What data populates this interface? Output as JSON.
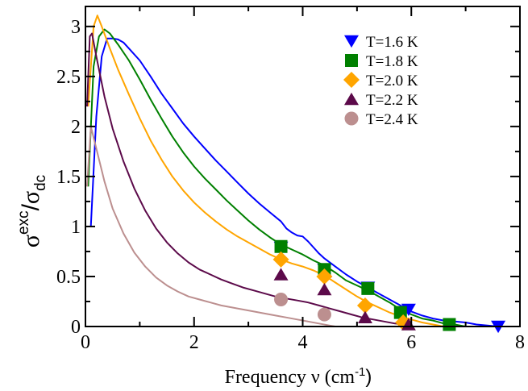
{
  "chart_data": {
    "type": "line",
    "title": "",
    "xlabel": {
      "main": "Frequency ν (cm",
      "sup": "-1",
      "close": ")"
    },
    "ylabel": {
      "sigma1": "σ",
      "sup": "exc",
      "slash": "/",
      "sigma2": "σ",
      "sub": "dc"
    },
    "xlim": [
      0,
      8
    ],
    "ylim": [
      0,
      3.2
    ],
    "xticks": [
      0,
      2,
      4,
      6,
      8
    ],
    "yticks": [
      0,
      0.5,
      1,
      1.5,
      2,
      2.5,
      3
    ],
    "xtick_labels": [
      "0",
      "2",
      "4",
      "6",
      "8"
    ],
    "ytick_labels": [
      "0",
      "0.5",
      "1",
      "1.5",
      "2",
      "2.5",
      "3"
    ],
    "grid": false,
    "legend_position": "top-right",
    "series": [
      {
        "name": "T=1.6 K",
        "color": "#0000ff",
        "marker": "triangle-down",
        "curve": [
          [
            0.1,
            1.0
          ],
          [
            0.2,
            2.1
          ],
          [
            0.3,
            2.7
          ],
          [
            0.4,
            2.88
          ],
          [
            0.5,
            2.88
          ],
          [
            0.6,
            2.87
          ],
          [
            0.7,
            2.84
          ],
          [
            0.8,
            2.78
          ],
          [
            1.0,
            2.66
          ],
          [
            1.2,
            2.5
          ],
          [
            1.4,
            2.33
          ],
          [
            1.6,
            2.18
          ],
          [
            1.8,
            2.03
          ],
          [
            2.0,
            1.9
          ],
          [
            2.2,
            1.78
          ],
          [
            2.4,
            1.66
          ],
          [
            2.6,
            1.55
          ],
          [
            2.8,
            1.44
          ],
          [
            3.0,
            1.33
          ],
          [
            3.2,
            1.23
          ],
          [
            3.4,
            1.14
          ],
          [
            3.6,
            1.05
          ],
          [
            3.7,
            0.98
          ],
          [
            3.8,
            0.94
          ],
          [
            3.9,
            0.91
          ],
          [
            4.0,
            0.9
          ],
          [
            4.1,
            0.85
          ],
          [
            4.2,
            0.79
          ],
          [
            4.3,
            0.73
          ],
          [
            4.4,
            0.68
          ],
          [
            4.6,
            0.6
          ],
          [
            4.8,
            0.52
          ],
          [
            5.0,
            0.45
          ],
          [
            5.2,
            0.39
          ],
          [
            5.4,
            0.33
          ],
          [
            5.6,
            0.27
          ],
          [
            5.8,
            0.21
          ],
          [
            6.0,
            0.15
          ],
          [
            6.2,
            0.11
          ],
          [
            6.4,
            0.08
          ],
          [
            6.6,
            0.06
          ],
          [
            6.8,
            0.05
          ],
          [
            7.0,
            0.04
          ],
          [
            7.2,
            0.02
          ],
          [
            7.4,
            0.01
          ],
          [
            7.6,
            0.0
          ]
        ],
        "points": [
          [
            3.6,
            0.79
          ],
          [
            4.4,
            0.57
          ],
          [
            5.2,
            0.39
          ],
          [
            5.95,
            0.17
          ],
          [
            7.6,
            0.0
          ]
        ]
      },
      {
        "name": "T=1.8 K",
        "color": "#008000",
        "marker": "square",
        "curve": [
          [
            0.05,
            1.4
          ],
          [
            0.15,
            2.6
          ],
          [
            0.25,
            2.9
          ],
          [
            0.35,
            2.97
          ],
          [
            0.45,
            2.93
          ],
          [
            0.6,
            2.82
          ],
          [
            0.8,
            2.66
          ],
          [
            1.0,
            2.47
          ],
          [
            1.2,
            2.27
          ],
          [
            1.4,
            2.08
          ],
          [
            1.6,
            1.9
          ],
          [
            1.8,
            1.74
          ],
          [
            2.0,
            1.6
          ],
          [
            2.2,
            1.48
          ],
          [
            2.4,
            1.37
          ],
          [
            2.6,
            1.26
          ],
          [
            2.8,
            1.16
          ],
          [
            3.0,
            1.06
          ],
          [
            3.2,
            0.97
          ],
          [
            3.4,
            0.89
          ],
          [
            3.6,
            0.82
          ],
          [
            3.8,
            0.77
          ],
          [
            4.0,
            0.72
          ],
          [
            4.2,
            0.66
          ],
          [
            4.4,
            0.61
          ],
          [
            4.6,
            0.54
          ],
          [
            4.8,
            0.46
          ],
          [
            5.0,
            0.41
          ],
          [
            5.2,
            0.36
          ],
          [
            5.4,
            0.3
          ],
          [
            5.6,
            0.24
          ],
          [
            5.8,
            0.17
          ],
          [
            6.0,
            0.12
          ],
          [
            6.2,
            0.08
          ],
          [
            6.4,
            0.06
          ],
          [
            6.6,
            0.03
          ],
          [
            6.8,
            0.02
          ],
          [
            7.0,
            0.0
          ]
        ],
        "points": [
          [
            3.6,
            0.8
          ],
          [
            4.4,
            0.57
          ],
          [
            5.2,
            0.38
          ],
          [
            5.8,
            0.14
          ],
          [
            6.7,
            0.02
          ]
        ]
      },
      {
        "name": "T=2.0 K",
        "color": "#ffa500",
        "marker": "diamond",
        "curve": [
          [
            0.05,
            2.2
          ],
          [
            0.15,
            3.0
          ],
          [
            0.22,
            3.11
          ],
          [
            0.3,
            3.0
          ],
          [
            0.45,
            2.78
          ],
          [
            0.6,
            2.57
          ],
          [
            0.8,
            2.32
          ],
          [
            1.0,
            2.08
          ],
          [
            1.2,
            1.86
          ],
          [
            1.4,
            1.67
          ],
          [
            1.6,
            1.5
          ],
          [
            1.8,
            1.36
          ],
          [
            2.0,
            1.24
          ],
          [
            2.2,
            1.14
          ],
          [
            2.4,
            1.05
          ],
          [
            2.6,
            0.97
          ],
          [
            2.8,
            0.9
          ],
          [
            3.0,
            0.84
          ],
          [
            3.2,
            0.78
          ],
          [
            3.4,
            0.72
          ],
          [
            3.6,
            0.67
          ],
          [
            3.8,
            0.63
          ],
          [
            4.0,
            0.6
          ],
          [
            4.2,
            0.56
          ],
          [
            4.4,
            0.51
          ],
          [
            4.6,
            0.44
          ],
          [
            4.8,
            0.37
          ],
          [
            5.0,
            0.3
          ],
          [
            5.2,
            0.24
          ],
          [
            5.4,
            0.19
          ],
          [
            5.6,
            0.14
          ],
          [
            5.8,
            0.1
          ],
          [
            6.0,
            0.07
          ],
          [
            6.2,
            0.04
          ],
          [
            6.4,
            0.02
          ],
          [
            6.6,
            0.0
          ]
        ],
        "points": [
          [
            3.6,
            0.67
          ],
          [
            4.4,
            0.5
          ],
          [
            5.15,
            0.21
          ],
          [
            5.85,
            0.04
          ]
        ]
      },
      {
        "name": "T=2.2 K",
        "color": "#5c0a4a",
        "marker": "triangle-up",
        "curve": [
          [
            0.03,
            2.2
          ],
          [
            0.08,
            2.9
          ],
          [
            0.12,
            2.93
          ],
          [
            0.2,
            2.7
          ],
          [
            0.35,
            2.3
          ],
          [
            0.5,
            1.98
          ],
          [
            0.7,
            1.65
          ],
          [
            0.9,
            1.38
          ],
          [
            1.1,
            1.16
          ],
          [
            1.3,
            0.98
          ],
          [
            1.5,
            0.84
          ],
          [
            1.7,
            0.73
          ],
          [
            1.9,
            0.64
          ],
          [
            2.1,
            0.57
          ],
          [
            2.3,
            0.52
          ],
          [
            2.5,
            0.47
          ],
          [
            2.7,
            0.43
          ],
          [
            2.9,
            0.39
          ],
          [
            3.1,
            0.36
          ],
          [
            3.3,
            0.33
          ],
          [
            3.5,
            0.3
          ],
          [
            3.7,
            0.28
          ],
          [
            3.9,
            0.26
          ],
          [
            4.1,
            0.24
          ],
          [
            4.3,
            0.21
          ],
          [
            4.5,
            0.18
          ],
          [
            4.7,
            0.15
          ],
          [
            4.9,
            0.12
          ],
          [
            5.1,
            0.09
          ],
          [
            5.3,
            0.07
          ],
          [
            5.5,
            0.05
          ],
          [
            5.7,
            0.03
          ],
          [
            5.9,
            0.02
          ],
          [
            6.0,
            0.0
          ]
        ],
        "points": [
          [
            3.6,
            0.52
          ],
          [
            4.4,
            0.37
          ],
          [
            5.15,
            0.09
          ],
          [
            5.95,
            0.02
          ]
        ]
      },
      {
        "name": "T=2.4 K",
        "color": "#bc8f8f",
        "marker": "circle",
        "curve": [
          [
            0.03,
            1.4
          ],
          [
            0.1,
            2.0
          ],
          [
            0.2,
            1.78
          ],
          [
            0.35,
            1.45
          ],
          [
            0.5,
            1.18
          ],
          [
            0.7,
            0.93
          ],
          [
            0.9,
            0.74
          ],
          [
            1.1,
            0.6
          ],
          [
            1.3,
            0.49
          ],
          [
            1.5,
            0.41
          ],
          [
            1.7,
            0.35
          ],
          [
            1.9,
            0.3
          ],
          [
            2.1,
            0.27
          ],
          [
            2.3,
            0.24
          ],
          [
            2.5,
            0.21
          ],
          [
            2.7,
            0.19
          ],
          [
            2.9,
            0.17
          ],
          [
            3.1,
            0.15
          ],
          [
            3.3,
            0.13
          ],
          [
            3.5,
            0.11
          ],
          [
            3.7,
            0.09
          ],
          [
            3.9,
            0.07
          ],
          [
            4.1,
            0.05
          ],
          [
            4.3,
            0.03
          ],
          [
            4.5,
            0.01
          ],
          [
            4.6,
            0.0
          ]
        ],
        "points": [
          [
            3.6,
            0.27
          ],
          [
            4.4,
            0.12
          ]
        ]
      }
    ]
  }
}
